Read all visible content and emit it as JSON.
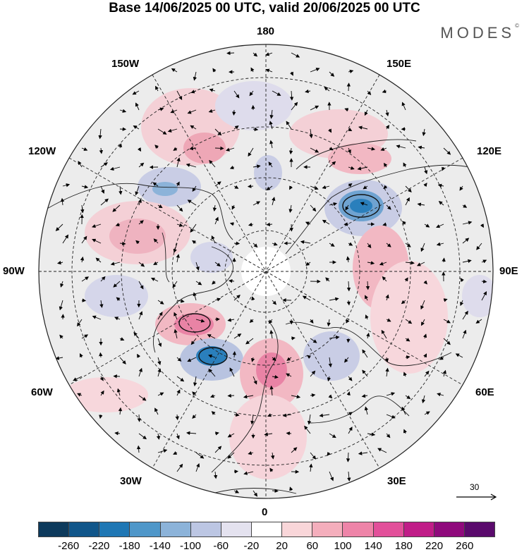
{
  "title": "Base 14/06/2025 00 UTC, valid 20/06/2025 00 UTC",
  "logo": "MODES",
  "logo_mark": "©",
  "longitude_labels": {
    "top": "180",
    "bottom": "0",
    "left": "90W",
    "right": "90E",
    "upper_left": "150W",
    "upper_right": "150E",
    "left_upper": "120W",
    "right_upper": "120E",
    "left_lower": "60W",
    "right_lower": "60E",
    "lower_left": "30W",
    "lower_right": "30E"
  },
  "vector_scale": {
    "label": "30"
  },
  "colorbar": {
    "colors": [
      "#0d3a5c",
      "#11568a",
      "#1f77b4",
      "#4f97c9",
      "#8cb3d9",
      "#bcc6e3",
      "#e4e2ef",
      "#ffffff",
      "#f9d6d9",
      "#f4aebc",
      "#ee84a8",
      "#e2509a",
      "#c01d88",
      "#8f0a7c",
      "#5a0a6c"
    ],
    "ticks": [
      "-260",
      "-220",
      "-180",
      "-140",
      "-100",
      "-60",
      "-20",
      "20",
      "60",
      "100",
      "140",
      "180",
      "220",
      "260"
    ]
  },
  "colors": {
    "land_fill": "#e6e6e6",
    "positive_light": "#f9d6d9",
    "positive_mid": "#f4aebc",
    "positive_strong": "#ee84a8",
    "negative_light": "#dcdcec",
    "negative_mid": "#8cb3d9",
    "negative_strong": "#1f77b4"
  }
}
